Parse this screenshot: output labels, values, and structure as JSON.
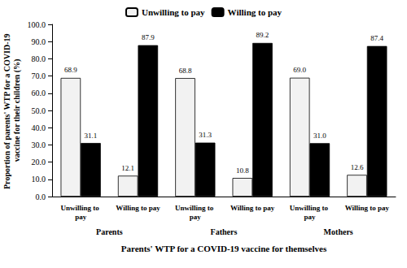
{
  "chart_data": {
    "type": "bar",
    "x_label": "Parents' WTP for a COVID-19 vaccine for themselves",
    "y_label": "Proportion of parents' WTP for a COVID-19 vaccine for their children (%)",
    "groups": [
      "Parents",
      "Fathers",
      "Mothers"
    ],
    "categories": [
      "Unwilling to pay",
      "Willing to pay",
      "Unwilling to pay",
      "Willing to pay",
      "Unwilling to pay",
      "Willing to pay"
    ],
    "series": [
      {
        "name": "Unwilling to pay",
        "color": "#f2f2f2",
        "values": [
          68.9,
          12.1,
          68.8,
          10.8,
          69.0,
          12.6
        ],
        "value_labels": [
          "68.9",
          "12.1",
          "68.8",
          "10.8",
          "69.0",
          "12.6"
        ]
      },
      {
        "name": "Willing to pay",
        "color": "#000000",
        "values": [
          31.1,
          87.9,
          31.3,
          89.2,
          31.0,
          87.4
        ],
        "value_labels": [
          "31.1",
          "87.9",
          "31.3",
          "89.2",
          "31.0",
          "87.4"
        ]
      }
    ],
    "ylim": [
      0,
      100
    ],
    "yticks": [
      {
        "value": 0,
        "label": "0.0"
      },
      {
        "value": 10,
        "label": "10.0"
      },
      {
        "value": 20,
        "label": "20.0"
      },
      {
        "value": 30,
        "label": "30.0"
      },
      {
        "value": 40,
        "label": "40.0"
      },
      {
        "value": 50,
        "label": "50.0"
      },
      {
        "value": 60,
        "label": "60.0"
      },
      {
        "value": 70,
        "label": "70.0"
      },
      {
        "value": 80,
        "label": "80.0"
      },
      {
        "value": 90,
        "label": "90.0"
      },
      {
        "value": 100,
        "label": "100.0"
      }
    ],
    "grid": false,
    "legend": "top",
    "data_labels": true
  }
}
